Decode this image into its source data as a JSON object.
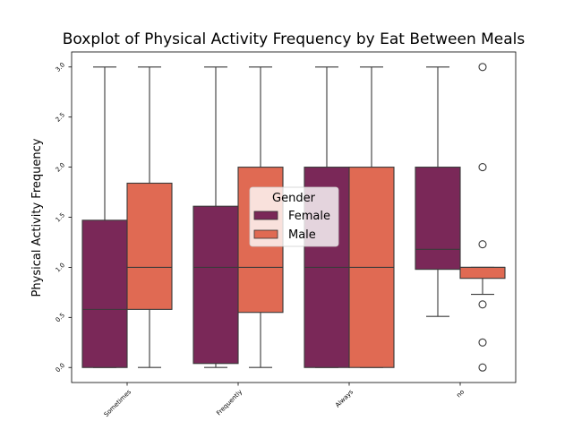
{
  "chart_data": {
    "type": "boxplot",
    "title": "Boxplot of Physical Activity Frequency by Eat Between Meals",
    "xlabel": "",
    "ylabel": "Physical Activity Frequency",
    "ylim": [
      -0.15,
      3.15
    ],
    "yticks": [
      "0.0",
      "0.5",
      "1.0",
      "1.5",
      "2.0",
      "2.5",
      "3.0"
    ],
    "categories": [
      "Sometimes",
      "Frequently",
      "Always",
      "no"
    ],
    "legend": {
      "title": "Gender",
      "position": "center"
    },
    "series": [
      {
        "name": "Female",
        "color": "#7a2858",
        "boxes": [
          {
            "whislo": 0.0,
            "q1": 0.0,
            "med": 0.58,
            "q3": 1.47,
            "whishi": 3.0,
            "fliers": []
          },
          {
            "whislo": 0.0,
            "q1": 0.04,
            "med": 1.0,
            "q3": 1.61,
            "whishi": 3.0,
            "fliers": []
          },
          {
            "whislo": 0.0,
            "q1": 0.0,
            "med": 1.0,
            "q3": 2.0,
            "whishi": 3.0,
            "fliers": []
          },
          {
            "whislo": 0.51,
            "q1": 0.98,
            "med": 1.18,
            "q3": 2.0,
            "whishi": 3.0,
            "fliers": []
          }
        ]
      },
      {
        "name": "Male",
        "color": "#e06a53",
        "boxes": [
          {
            "whislo": 0.0,
            "q1": 0.58,
            "med": 1.0,
            "q3": 1.84,
            "whishi": 3.0,
            "fliers": []
          },
          {
            "whislo": 0.0,
            "q1": 0.55,
            "med": 1.0,
            "q3": 2.0,
            "whishi": 3.0,
            "fliers": []
          },
          {
            "whislo": 0.0,
            "q1": 0.0,
            "med": 1.0,
            "q3": 2.0,
            "whishi": 3.0,
            "fliers": []
          },
          {
            "whislo": 0.73,
            "q1": 0.89,
            "med": 1.0,
            "q3": 1.0,
            "whishi": 1.0,
            "fliers": [
              3.0,
              2.0,
              1.23,
              0.63,
              0.25,
              0.0
            ]
          }
        ]
      }
    ]
  }
}
